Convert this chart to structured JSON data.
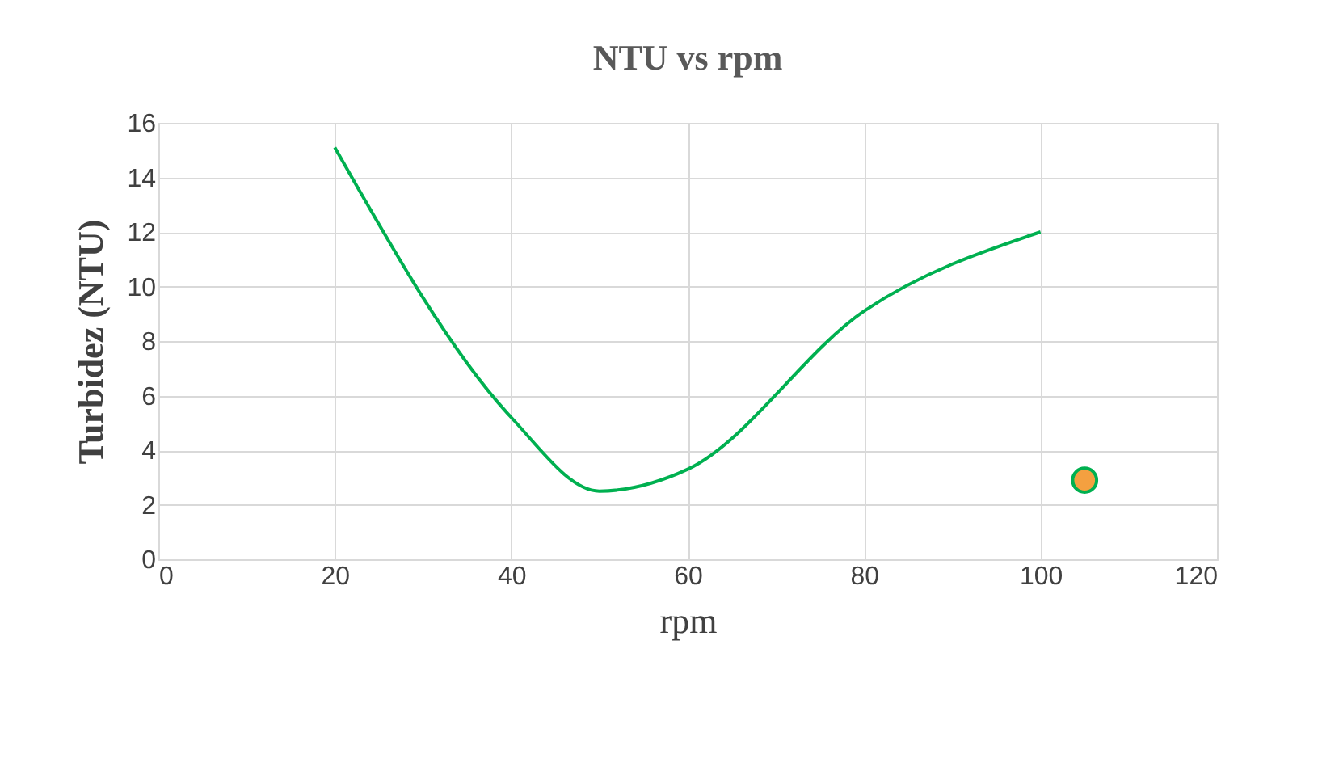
{
  "chart_data": {
    "type": "line",
    "title": "NTU vs rpm",
    "xlabel": "rpm",
    "ylabel": "Turbidez (NTU)",
    "series": [
      {
        "color": "#00b050",
        "x": [
          20,
          40,
          50,
          60,
          80,
          100
        ],
        "values": [
          15.1,
          5.2,
          2.5,
          3.3,
          9.1,
          12.0
        ]
      },
      {
        "type": "scatter",
        "marker": "circle",
        "color": "#f4a040",
        "x": [
          105
        ],
        "values": [
          2.9
        ]
      }
    ],
    "xlim": [
      0,
      120
    ],
    "xticks": [
      0,
      20,
      40,
      60,
      80,
      100,
      120
    ],
    "ylim": [
      0,
      16
    ],
    "yticks": [
      0,
      2,
      4,
      6,
      8,
      10,
      12,
      14,
      16
    ],
    "grid": true,
    "line_style": "solid"
  }
}
